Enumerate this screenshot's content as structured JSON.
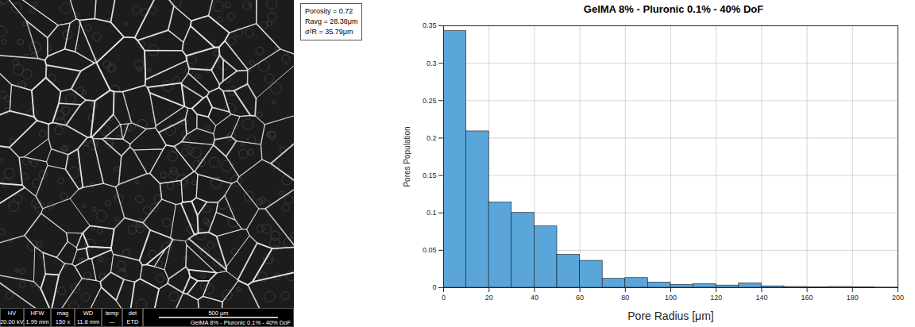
{
  "chart_data": {
    "type": "histogram",
    "title": "GelMA 8% - Pluronic 0.1% - 40% DoF",
    "x_label": "Pore Radius [μm]",
    "y_label": "Pores Population",
    "bins": [
      0,
      10,
      20,
      30,
      40,
      50,
      60,
      70,
      80,
      90,
      100,
      110,
      120,
      130,
      140,
      150,
      160,
      170,
      180,
      190,
      200
    ],
    "values": [
      0.343,
      0.209,
      0.114,
      0.1,
      0.082,
      0.044,
      0.036,
      0.012,
      0.013,
      0.007,
      0.004,
      0.005,
      0.003,
      0.006,
      0.002,
      0.001,
      0.0005,
      0.001,
      0.0005,
      0.0003
    ],
    "color": "#5aa5d9",
    "xlim": [
      0,
      200
    ],
    "ylim": [
      0,
      0.35
    ],
    "xticks": [
      0,
      20,
      40,
      60,
      80,
      100,
      120,
      140,
      160,
      180,
      200
    ],
    "yticks": [
      0,
      0.05,
      0.1,
      0.15,
      0.2,
      0.25,
      0.3,
      0.35
    ],
    "grid": true,
    "annotations": [
      "Porosity = 0.72",
      "Ravg = 28.38μm",
      "σ²R = 35.79μm"
    ]
  },
  "micrograph": {
    "info_bar": {
      "columns": [
        {
          "header": "HV",
          "value": "20.00 kV"
        },
        {
          "header": "HFW",
          "value": "1.99 mm"
        },
        {
          "header": "mag",
          "value": "150 x"
        },
        {
          "header": "WD",
          "value": "11.8 mm"
        },
        {
          "header": "temp",
          "value": "---"
        },
        {
          "header": "det",
          "value": "ETD"
        }
      ],
      "scale_bar": "500 μm",
      "label": "GelMA 8% - Pluronic 0.1% - 40% DoF"
    }
  }
}
